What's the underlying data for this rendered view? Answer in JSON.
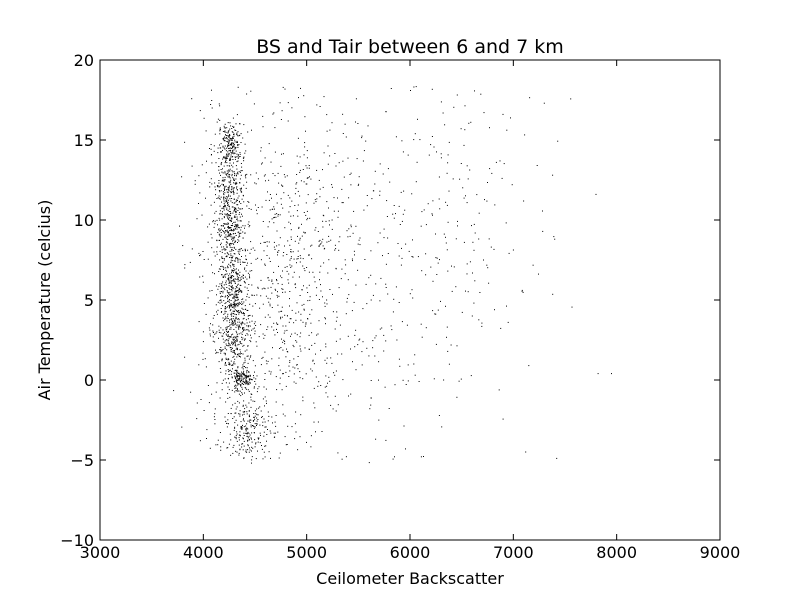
{
  "chart_data": {
    "type": "scatter",
    "title": "BS and Tair between 6 and 7 km",
    "xlabel": "Ceilometer Backscatter",
    "ylabel": "Air Temperature (celcius)",
    "xlim": [
      3000,
      9000
    ],
    "ylim": [
      -10,
      20
    ],
    "xticks": [
      3000,
      4000,
      5000,
      6000,
      7000,
      8000,
      9000
    ],
    "yticks": [
      -10,
      -5,
      0,
      5,
      10,
      15,
      20
    ],
    "xtick_labels": [
      "3000",
      "4000",
      "5000",
      "6000",
      "7000",
      "8000",
      "9000"
    ],
    "ytick_labels": [
      "−10",
      "−5",
      "0",
      "5",
      "10",
      "15",
      "20"
    ],
    "grid": false,
    "legend": "none",
    "marker_color": "#000000",
    "point_clusters": [
      {
        "x_center": 4270,
        "x_spread": 60,
        "y_center": 14.8,
        "y_spread": 0.6,
        "count": 180
      },
      {
        "x_center": 4250,
        "x_spread": 70,
        "y_center": 12.5,
        "y_spread": 1.2,
        "count": 220
      },
      {
        "x_center": 4260,
        "x_spread": 70,
        "y_center": 9.5,
        "y_spread": 1.2,
        "count": 280
      },
      {
        "x_center": 4300,
        "x_spread": 80,
        "y_center": 5.5,
        "y_spread": 1.5,
        "count": 380
      },
      {
        "x_center": 4300,
        "x_spread": 80,
        "y_center": 2.2,
        "y_spread": 1.2,
        "count": 260
      },
      {
        "x_center": 4380,
        "x_spread": 60,
        "y_center": 0.0,
        "y_spread": 0.35,
        "count": 160
      },
      {
        "x_center": 4450,
        "x_spread": 110,
        "y_center": -3.0,
        "y_spread": 1.0,
        "count": 220
      },
      {
        "x_center": 4150,
        "x_spread": 140,
        "y_center": 6.0,
        "y_spread": 7.0,
        "count": 250
      },
      {
        "x_center": 4800,
        "x_spread": 300,
        "y_center": 6.0,
        "y_spread": 6.0,
        "count": 650
      },
      {
        "x_center": 5600,
        "x_spread": 550,
        "y_center": 8.0,
        "y_spread": 6.0,
        "count": 380
      },
      {
        "x_center": 6600,
        "x_spread": 500,
        "y_center": 11.0,
        "y_spread": 5.0,
        "count": 110
      }
    ],
    "isolated_points": [
      {
        "x": 7820,
        "y": 0.4
      },
      {
        "x": 7950,
        "y": 0.4
      },
      {
        "x": 7800,
        "y": 11.6
      },
      {
        "x": 7300,
        "y": 17.3
      },
      {
        "x": 7400,
        "y": 8.8
      },
      {
        "x": 7150,
        "y": 0.9
      },
      {
        "x": 7420,
        "y": -4.9
      },
      {
        "x": 7120,
        "y": -4.5
      },
      {
        "x": 7380,
        "y": 12.8
      },
      {
        "x": 6900,
        "y": 16.6
      },
      {
        "x": 6950,
        "y": 3.6
      },
      {
        "x": 3800,
        "y": 8.4
      },
      {
        "x": 3790,
        "y": 12.7
      },
      {
        "x": 3820,
        "y": 7.0
      },
      {
        "x": 6110,
        "y": -4.8
      },
      {
        "x": 5850,
        "y": -4.8
      },
      {
        "x": 4650,
        "y": -4.9
      },
      {
        "x": 6050,
        "y": 0.3
      }
    ]
  }
}
